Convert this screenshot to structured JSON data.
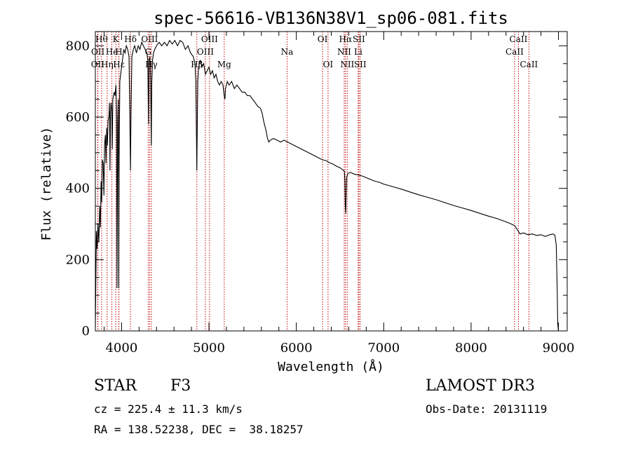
{
  "chart_data": {
    "type": "line",
    "title": "spec-56616-VB136N38V1_sp06-081.fits",
    "xlabel": "Wavelength (Å)",
    "ylabel": "Flux (relative)",
    "xlim": [
      3700,
      9100
    ],
    "ylim": [
      0,
      840
    ],
    "x_ticks": [
      4000,
      5000,
      6000,
      7000,
      8000,
      9000
    ],
    "y_ticks": [
      0,
      200,
      400,
      600,
      800
    ],
    "series": [
      {
        "name": "flux",
        "points": [
          [
            3700,
            10
          ],
          [
            3705,
            120
          ],
          [
            3712,
            280
          ],
          [
            3720,
            230
          ],
          [
            3730,
            300
          ],
          [
            3740,
            250
          ],
          [
            3750,
            350
          ],
          [
            3758,
            290
          ],
          [
            3766,
            420
          ],
          [
            3773,
            360
          ],
          [
            3780,
            480
          ],
          [
            3790,
            470
          ],
          [
            3798,
            380
          ],
          [
            3805,
            520
          ],
          [
            3815,
            550
          ],
          [
            3822,
            470
          ],
          [
            3830,
            570
          ],
          [
            3838,
            520
          ],
          [
            3845,
            590
          ],
          [
            3855,
            600
          ],
          [
            3862,
            640
          ],
          [
            3868,
            450
          ],
          [
            3873,
            610
          ],
          [
            3880,
            640
          ],
          [
            3888,
            620
          ],
          [
            3893,
            510
          ],
          [
            3900,
            650
          ],
          [
            3915,
            670
          ],
          [
            3925,
            660
          ],
          [
            3935,
            690
          ],
          [
            3942,
            620
          ],
          [
            3948,
            120
          ],
          [
            3955,
            580
          ],
          [
            3962,
            650
          ],
          [
            3968,
            120
          ],
          [
            3972,
            480
          ],
          [
            3980,
            700
          ],
          [
            3990,
            720
          ],
          [
            4000,
            740
          ],
          [
            4010,
            760
          ],
          [
            4025,
            790
          ],
          [
            4040,
            780
          ],
          [
            4055,
            800
          ],
          [
            4070,
            790
          ],
          [
            4085,
            770
          ],
          [
            4095,
            600
          ],
          [
            4102,
            450
          ],
          [
            4108,
            600
          ],
          [
            4118,
            770
          ],
          [
            4135,
            790
          ],
          [
            4150,
            800
          ],
          [
            4170,
            780
          ],
          [
            4190,
            800
          ],
          [
            4210,
            790
          ],
          [
            4230,
            810
          ],
          [
            4250,
            800
          ],
          [
            4270,
            790
          ],
          [
            4290,
            780
          ],
          [
            4300,
            760
          ],
          [
            4308,
            580
          ],
          [
            4315,
            760
          ],
          [
            4325,
            770
          ],
          [
            4333,
            700
          ],
          [
            4340,
            520
          ],
          [
            4346,
            700
          ],
          [
            4355,
            760
          ],
          [
            4365,
            780
          ],
          [
            4380,
            790
          ],
          [
            4400,
            800
          ],
          [
            4430,
            810
          ],
          [
            4460,
            800
          ],
          [
            4490,
            810
          ],
          [
            4520,
            800
          ],
          [
            4550,
            815
          ],
          [
            4580,
            805
          ],
          [
            4610,
            815
          ],
          [
            4640,
            800
          ],
          [
            4670,
            815
          ],
          [
            4700,
            810
          ],
          [
            4730,
            790
          ],
          [
            4760,
            800
          ],
          [
            4790,
            780
          ],
          [
            4820,
            770
          ],
          [
            4840,
            750
          ],
          [
            4850,
            700
          ],
          [
            4857,
            550
          ],
          [
            4861,
            450
          ],
          [
            4866,
            560
          ],
          [
            4872,
            700
          ],
          [
            4882,
            740
          ],
          [
            4900,
            760
          ],
          [
            4920,
            740
          ],
          [
            4940,
            750
          ],
          [
            4960,
            720
          ],
          [
            4980,
            730
          ],
          [
            5000,
            740
          ],
          [
            5020,
            720
          ],
          [
            5040,
            730
          ],
          [
            5060,
            710
          ],
          [
            5080,
            720
          ],
          [
            5100,
            700
          ],
          [
            5120,
            690
          ],
          [
            5140,
            700
          ],
          [
            5160,
            690
          ],
          [
            5175,
            660
          ],
          [
            5183,
            650
          ],
          [
            5190,
            680
          ],
          [
            5210,
            700
          ],
          [
            5230,
            690
          ],
          [
            5260,
            700
          ],
          [
            5290,
            680
          ],
          [
            5320,
            690
          ],
          [
            5350,
            680
          ],
          [
            5380,
            670
          ],
          [
            5410,
            670
          ],
          [
            5440,
            660
          ],
          [
            5470,
            660
          ],
          [
            5500,
            650
          ],
          [
            5530,
            640
          ],
          [
            5560,
            630
          ],
          [
            5590,
            625
          ],
          [
            5610,
            610
          ],
          [
            5625,
            590
          ],
          [
            5640,
            575
          ],
          [
            5655,
            560
          ],
          [
            5670,
            540
          ],
          [
            5685,
            530
          ],
          [
            5700,
            535
          ],
          [
            5740,
            540
          ],
          [
            5780,
            535
          ],
          [
            5820,
            530
          ],
          [
            5860,
            535
          ],
          [
            5900,
            530
          ],
          [
            5940,
            525
          ],
          [
            5980,
            520
          ],
          [
            6020,
            515
          ],
          [
            6060,
            510
          ],
          [
            6100,
            505
          ],
          [
            6140,
            500
          ],
          [
            6180,
            495
          ],
          [
            6220,
            490
          ],
          [
            6260,
            485
          ],
          [
            6300,
            480
          ],
          [
            6340,
            478
          ],
          [
            6380,
            472
          ],
          [
            6420,
            468
          ],
          [
            6460,
            462
          ],
          [
            6500,
            458
          ],
          [
            6530,
            452
          ],
          [
            6550,
            448
          ],
          [
            6556,
            420
          ],
          [
            6560,
            350
          ],
          [
            6565,
            330
          ],
          [
            6570,
            380
          ],
          [
            6576,
            430
          ],
          [
            6590,
            442
          ],
          [
            6620,
            445
          ],
          [
            6660,
            440
          ],
          [
            6700,
            438
          ],
          [
            6750,
            435
          ],
          [
            6800,
            430
          ],
          [
            6850,
            425
          ],
          [
            6900,
            420
          ],
          [
            6950,
            417
          ],
          [
            7000,
            412
          ],
          [
            7100,
            405
          ],
          [
            7200,
            398
          ],
          [
            7300,
            390
          ],
          [
            7400,
            382
          ],
          [
            7500,
            375
          ],
          [
            7600,
            368
          ],
          [
            7700,
            360
          ],
          [
            7800,
            352
          ],
          [
            7900,
            345
          ],
          [
            8000,
            338
          ],
          [
            8100,
            330
          ],
          [
            8200,
            322
          ],
          [
            8300,
            315
          ],
          [
            8400,
            306
          ],
          [
            8460,
            300
          ],
          [
            8500,
            295
          ],
          [
            8540,
            280
          ],
          [
            8560,
            272
          ],
          [
            8600,
            275
          ],
          [
            8650,
            270
          ],
          [
            8700,
            272
          ],
          [
            8750,
            268
          ],
          [
            8800,
            270
          ],
          [
            8850,
            265
          ],
          [
            8900,
            270
          ],
          [
            8940,
            272
          ],
          [
            8960,
            268
          ],
          [
            8975,
            240
          ],
          [
            8985,
            120
          ],
          [
            8992,
            20
          ],
          [
            9000,
            0
          ]
        ]
      }
    ],
    "spectral_lines": [
      {
        "label": "OII",
        "wavelength": 3727,
        "row": 2
      },
      {
        "label": "OII",
        "wavelength": 3729,
        "row": 1
      },
      {
        "label": "Hθ",
        "wavelength": 3771,
        "row": 0
      },
      {
        "label": "Hη",
        "wavelength": 3835,
        "row": 2
      },
      {
        "label": "He",
        "wavelength": 3889,
        "row": 1
      },
      {
        "label": "K",
        "wavelength": 3934,
        "row": 0
      },
      {
        "label": "H",
        "wavelength": 3969,
        "row": 1
      },
      {
        "label": "Hε",
        "wavelength": 3970,
        "row": 2
      },
      {
        "label": "Hδ",
        "wavelength": 4102,
        "row": 0
      },
      {
        "label": "G",
        "wavelength": 4305,
        "row": 1
      },
      {
        "label": "OIII",
        "wavelength": 4321,
        "row": 0
      },
      {
        "label": "Hγ",
        "wavelength": 4341,
        "row": 2
      },
      {
        "label": "Hβ",
        "wavelength": 4862,
        "row": 2
      },
      {
        "label": "OIII",
        "wavelength": 4959,
        "row": 1
      },
      {
        "label": "OIII",
        "wavelength": 5007,
        "row": 0
      },
      {
        "label": "Mg",
        "wavelength": 5175,
        "row": 2
      },
      {
        "label": "Na",
        "wavelength": 5894,
        "row": 1
      },
      {
        "label": "OI",
        "wavelength": 6300,
        "row": 0
      },
      {
        "label": "OI",
        "wavelength": 6363,
        "row": 2
      },
      {
        "label": "NII",
        "wavelength": 6548,
        "row": 1
      },
      {
        "label": "Hα",
        "wavelength": 6563,
        "row": 0
      },
      {
        "label": "NII",
        "wavelength": 6583,
        "row": 2
      },
      {
        "label": "SII",
        "wavelength": 6716,
        "row": 0
      },
      {
        "label": "Li",
        "wavelength": 6708,
        "row": 1
      },
      {
        "label": "SII",
        "wavelength": 6731,
        "row": 2
      },
      {
        "label": "CaII",
        "wavelength": 8498,
        "row": 1
      },
      {
        "label": "CaII",
        "wavelength": 8542,
        "row": 0
      },
      {
        "label": "CaII",
        "wavelength": 8662,
        "row": 2
      }
    ]
  },
  "info": {
    "object_class": "STAR",
    "subclass": "F3",
    "survey": "LAMOST DR3",
    "redshift_text": "cz = 225.4 ± 11.3 km/s",
    "obs_date_text": "Obs-Date: 20131119",
    "coords_text": "RA = 138.52238, DEC =  38.18257"
  },
  "colors": {
    "line": "#000000",
    "marker_lines": "#c00000",
    "axes": "#000000",
    "background": "#ffffff"
  }
}
